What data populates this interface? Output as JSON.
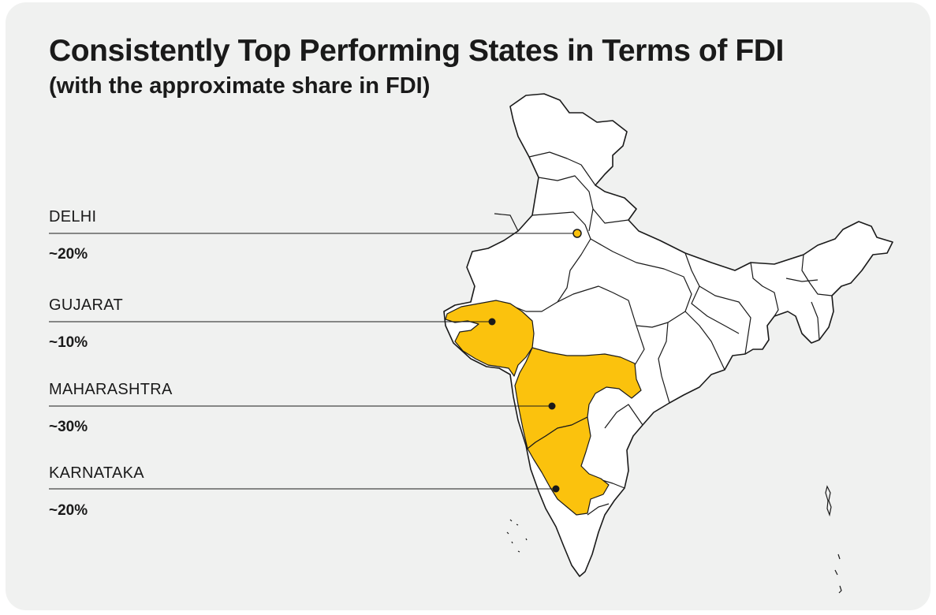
{
  "title": "Consistently Top Performing States in Terms of FDI",
  "subtitle": "(with the approximate share in FDI)",
  "colors": {
    "highlight": "#fbc20d",
    "land": "#ffffff",
    "border": "#1a1a1a",
    "background": "#f0f1f0"
  },
  "states": [
    {
      "name": "DELHI",
      "share": "~20%"
    },
    {
      "name": "GUJARAT",
      "share": "~10%"
    },
    {
      "name": "MAHARASHTRA",
      "share": "~30%"
    },
    {
      "name": "KARNATAKA",
      "share": "~20%"
    }
  ]
}
